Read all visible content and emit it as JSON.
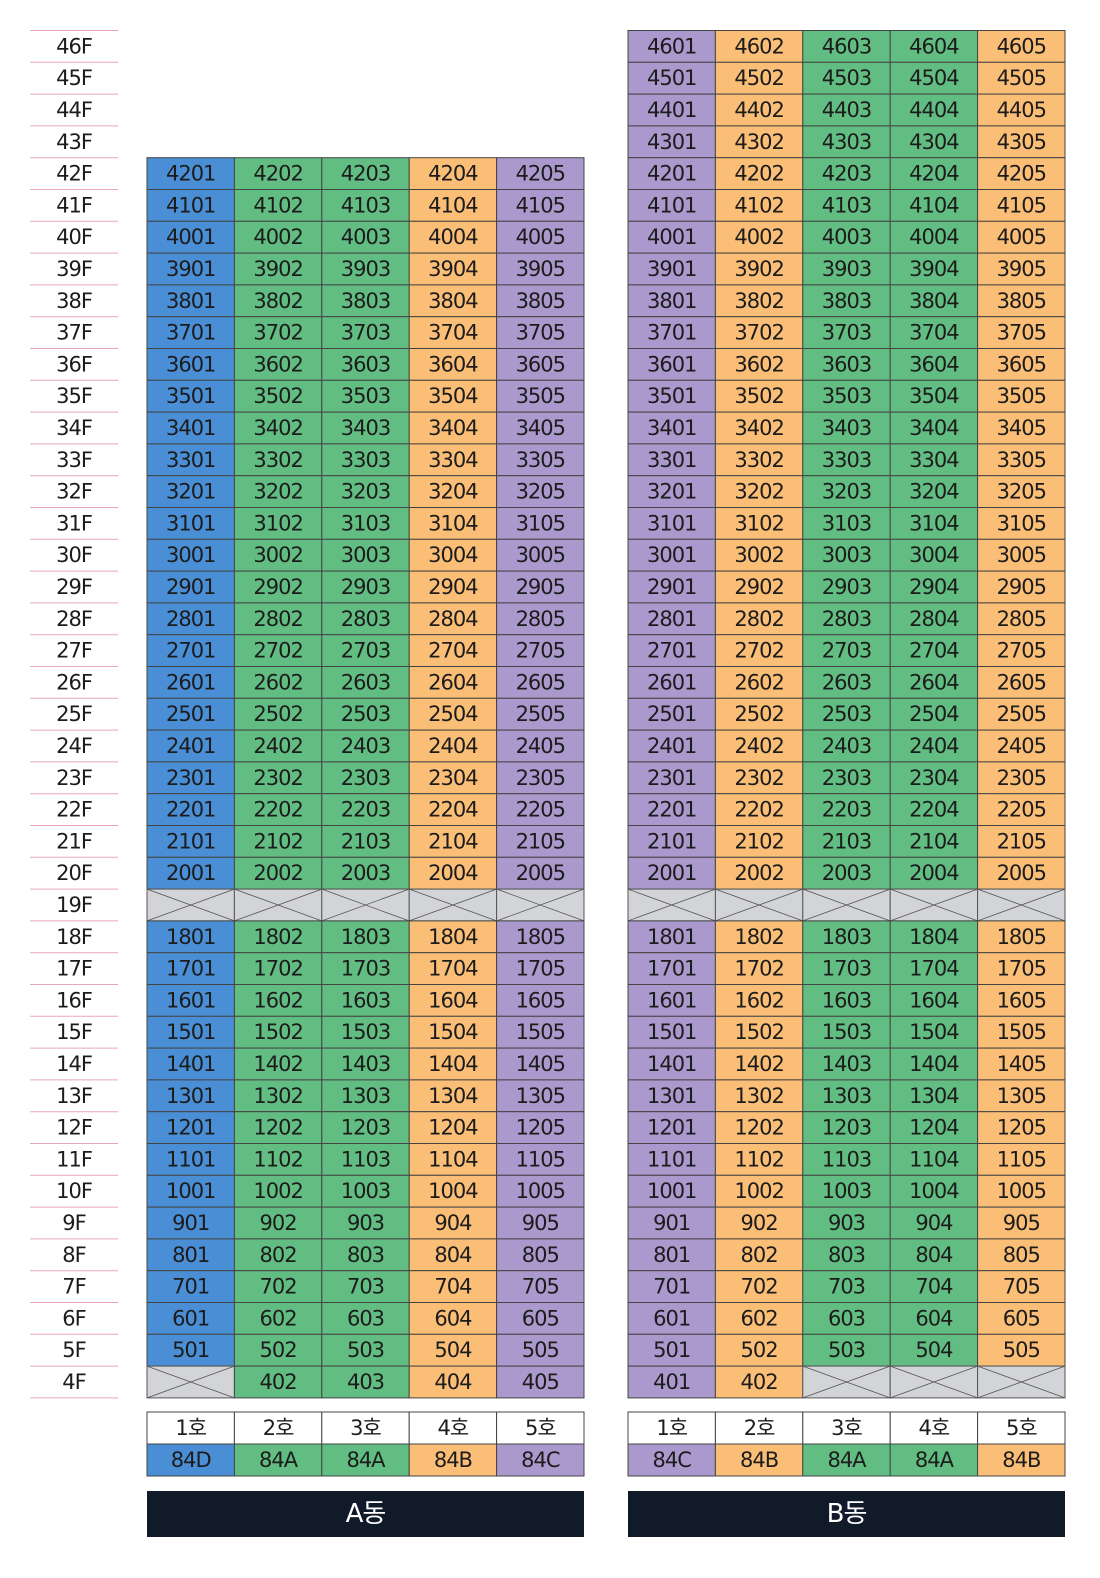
{
  "floors": [
    "46F",
    "45F",
    "44F",
    "43F",
    "42F",
    "41F",
    "40F",
    "39F",
    "38F",
    "37F",
    "36F",
    "35F",
    "34F",
    "33F",
    "32F",
    "31F",
    "30F",
    "29F",
    "28F",
    "27F",
    "26F",
    "25F",
    "24F",
    "23F",
    "22F",
    "21F",
    "20F",
    "19F",
    "18F",
    "17F",
    "16F",
    "15F",
    "14F",
    "13F",
    "12F",
    "11F",
    "10F",
    "9F",
    "8F",
    "7F",
    "6F",
    "5F",
    "4F"
  ],
  "buildings": [
    {
      "name": "A동",
      "lines": [
        {
          "label": "1호",
          "type": "84D",
          "color": "#4a8fd6"
        },
        {
          "label": "2호",
          "type": "84A",
          "color": "#62bd82"
        },
        {
          "label": "3호",
          "type": "84A",
          "color": "#62bd82"
        },
        {
          "label": "4호",
          "type": "84B",
          "color": "#fbbe77"
        },
        {
          "label": "5호",
          "type": "84C",
          "color": "#ab98cc"
        }
      ],
      "rows": [
        [
          "4201",
          "4202",
          "4203",
          "4204",
          "4205"
        ],
        [
          "4101",
          "4102",
          "4103",
          "4104",
          "4105"
        ],
        [
          "4001",
          "4002",
          "4003",
          "4004",
          "4005"
        ],
        [
          "3901",
          "3902",
          "3903",
          "3904",
          "3905"
        ],
        [
          "3801",
          "3802",
          "3803",
          "3804",
          "3805"
        ],
        [
          "3701",
          "3702",
          "3703",
          "3704",
          "3705"
        ],
        [
          "3601",
          "3602",
          "3603",
          "3604",
          "3605"
        ],
        [
          "3501",
          "3502",
          "3503",
          "3504",
          "3505"
        ],
        [
          "3401",
          "3402",
          "3403",
          "3404",
          "3405"
        ],
        [
          "3301",
          "3302",
          "3303",
          "3304",
          "3305"
        ],
        [
          "3201",
          "3202",
          "3203",
          "3204",
          "3205"
        ],
        [
          "3101",
          "3102",
          "3103",
          "3104",
          "3105"
        ],
        [
          "3001",
          "3002",
          "3003",
          "3004",
          "3005"
        ],
        [
          "2901",
          "2902",
          "2903",
          "2904",
          "2905"
        ],
        [
          "2801",
          "2802",
          "2803",
          "2804",
          "2805"
        ],
        [
          "2701",
          "2702",
          "2703",
          "2704",
          "2705"
        ],
        [
          "2601",
          "2602",
          "2603",
          "2604",
          "2605"
        ],
        [
          "2501",
          "2502",
          "2503",
          "2504",
          "2505"
        ],
        [
          "2401",
          "2402",
          "2403",
          "2404",
          "2405"
        ],
        [
          "2301",
          "2302",
          "2303",
          "2304",
          "2305"
        ],
        [
          "2201",
          "2202",
          "2203",
          "2204",
          "2205"
        ],
        [
          "2101",
          "2102",
          "2103",
          "2104",
          "2105"
        ],
        [
          "2001",
          "2002",
          "2003",
          "2004",
          "2005"
        ],
        [
          null,
          null,
          null,
          null,
          null
        ],
        [
          "1801",
          "1802",
          "1803",
          "1804",
          "1805"
        ],
        [
          "1701",
          "1702",
          "1703",
          "1704",
          "1705"
        ],
        [
          "1601",
          "1602",
          "1603",
          "1604",
          "1605"
        ],
        [
          "1501",
          "1502",
          "1503",
          "1504",
          "1505"
        ],
        [
          "1401",
          "1402",
          "1403",
          "1404",
          "1405"
        ],
        [
          "1301",
          "1302",
          "1303",
          "1304",
          "1305"
        ],
        [
          "1201",
          "1202",
          "1203",
          "1204",
          "1205"
        ],
        [
          "1101",
          "1102",
          "1103",
          "1104",
          "1105"
        ],
        [
          "1001",
          "1002",
          "1003",
          "1004",
          "1005"
        ],
        [
          "901",
          "902",
          "903",
          "904",
          "905"
        ],
        [
          "801",
          "802",
          "803",
          "804",
          "805"
        ],
        [
          "701",
          "702",
          "703",
          "704",
          "705"
        ],
        [
          "601",
          "602",
          "603",
          "604",
          "605"
        ],
        [
          "501",
          "502",
          "503",
          "504",
          "505"
        ],
        [
          null,
          "402",
          "403",
          "404",
          "405"
        ]
      ]
    },
    {
      "name": "B동",
      "lines": [
        {
          "label": "1호",
          "type": "84C",
          "color": "#ab98cc"
        },
        {
          "label": "2호",
          "type": "84B",
          "color": "#fbbe77"
        },
        {
          "label": "3호",
          "type": "84A",
          "color": "#62bd82"
        },
        {
          "label": "4호",
          "type": "84A",
          "color": "#62bd82"
        },
        {
          "label": "5호",
          "type": "84B",
          "color": "#fbbe77"
        }
      ],
      "rows": [
        [
          "4601",
          "4602",
          "4603",
          "4604",
          "4605"
        ],
        [
          "4501",
          "4502",
          "4503",
          "4504",
          "4505"
        ],
        [
          "4401",
          "4402",
          "4403",
          "4404",
          "4405"
        ],
        [
          "4301",
          "4302",
          "4303",
          "4304",
          "4305"
        ],
        [
          "4201",
          "4202",
          "4203",
          "4204",
          "4205"
        ],
        [
          "4101",
          "4102",
          "4103",
          "4104",
          "4105"
        ],
        [
          "4001",
          "4002",
          "4003",
          "4004",
          "4005"
        ],
        [
          "3901",
          "3902",
          "3903",
          "3904",
          "3905"
        ],
        [
          "3801",
          "3802",
          "3803",
          "3804",
          "3805"
        ],
        [
          "3701",
          "3702",
          "3703",
          "3704",
          "3705"
        ],
        [
          "3601",
          "3602",
          "3603",
          "3604",
          "3605"
        ],
        [
          "3501",
          "3502",
          "3503",
          "3504",
          "3505"
        ],
        [
          "3401",
          "3402",
          "3403",
          "3404",
          "3405"
        ],
        [
          "3301",
          "3302",
          "3303",
          "3304",
          "3305"
        ],
        [
          "3201",
          "3202",
          "3203",
          "3204",
          "3205"
        ],
        [
          "3101",
          "3102",
          "3103",
          "3104",
          "3105"
        ],
        [
          "3001",
          "3002",
          "3003",
          "3004",
          "3005"
        ],
        [
          "2901",
          "2902",
          "2903",
          "2904",
          "2905"
        ],
        [
          "2801",
          "2802",
          "2803",
          "2804",
          "2805"
        ],
        [
          "2701",
          "2702",
          "2703",
          "2704",
          "2705"
        ],
        [
          "2601",
          "2602",
          "2603",
          "2604",
          "2605"
        ],
        [
          "2501",
          "2502",
          "2503",
          "2504",
          "2505"
        ],
        [
          "2401",
          "2402",
          "2403",
          "2404",
          "2405"
        ],
        [
          "2301",
          "2302",
          "2303",
          "2304",
          "2305"
        ],
        [
          "2201",
          "2202",
          "2203",
          "2204",
          "2205"
        ],
        [
          "2101",
          "2102",
          "2103",
          "2104",
          "2105"
        ],
        [
          "2001",
          "2002",
          "2003",
          "2004",
          "2005"
        ],
        [
          null,
          null,
          null,
          null,
          null
        ],
        [
          "1801",
          "1802",
          "1803",
          "1804",
          "1805"
        ],
        [
          "1701",
          "1702",
          "1703",
          "1704",
          "1705"
        ],
        [
          "1601",
          "1602",
          "1603",
          "1604",
          "1605"
        ],
        [
          "1501",
          "1502",
          "1503",
          "1504",
          "1505"
        ],
        [
          "1401",
          "1402",
          "1403",
          "1404",
          "1405"
        ],
        [
          "1301",
          "1302",
          "1303",
          "1304",
          "1305"
        ],
        [
          "1201",
          "1202",
          "1203",
          "1204",
          "1205"
        ],
        [
          "1101",
          "1102",
          "1103",
          "1104",
          "1105"
        ],
        [
          "1001",
          "1002",
          "1003",
          "1004",
          "1005"
        ],
        [
          "901",
          "902",
          "903",
          "904",
          "905"
        ],
        [
          "801",
          "802",
          "803",
          "804",
          "805"
        ],
        [
          "701",
          "702",
          "703",
          "704",
          "705"
        ],
        [
          "601",
          "602",
          "603",
          "604",
          "605"
        ],
        [
          "501",
          "502",
          "503",
          "504",
          "505"
        ],
        [
          "401",
          "402",
          null,
          null,
          null
        ]
      ]
    }
  ]
}
